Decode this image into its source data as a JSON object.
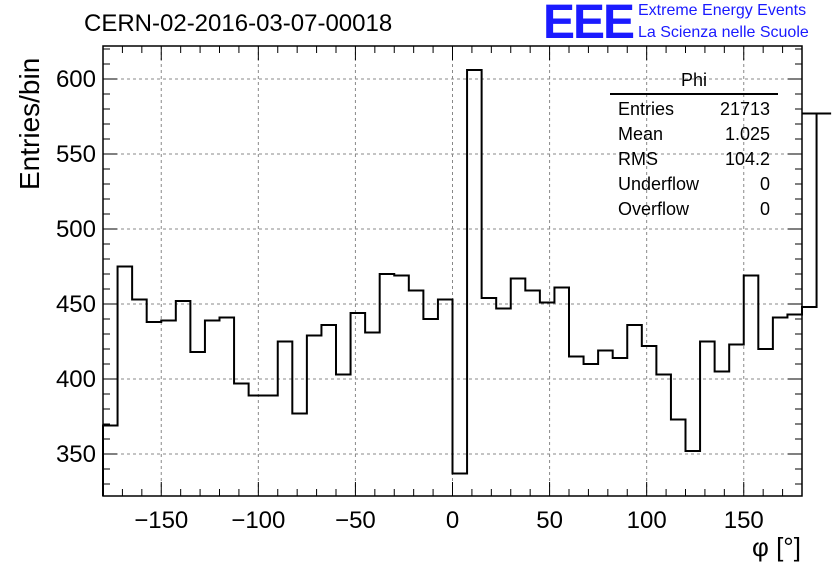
{
  "chart_data": {
    "type": "bar",
    "title": "CERN-02-2016-03-07-00018",
    "xlabel": "φ [°]",
    "ylabel": "Entries/bin",
    "xlim": [
      -180,
      180
    ],
    "ylim": [
      322,
      622
    ],
    "xticks": [
      -150,
      -100,
      -50,
      0,
      50,
      100,
      150
    ],
    "xtick_labels": [
      "−150",
      "−100",
      "−50",
      "0",
      "50",
      "100",
      "150"
    ],
    "yticks": [
      350,
      400,
      450,
      500,
      550,
      600
    ],
    "yticks_labels": [
      "350",
      "400",
      "450",
      "500",
      "550",
      "600"
    ],
    "grid": true,
    "bin_edges_start": -180,
    "bin_width": 7.5,
    "values": [
      369,
      475,
      453,
      438,
      439,
      452,
      418,
      439,
      441,
      397,
      389,
      389,
      425,
      377,
      429,
      436,
      403,
      444,
      431,
      470,
      469,
      459,
      440,
      453,
      337,
      606,
      454,
      447,
      467,
      459,
      451,
      461,
      415,
      410,
      419,
      414,
      436,
      422,
      403,
      373,
      352,
      425,
      405,
      423,
      469,
      420,
      441,
      443,
      448
    ],
    "stats": {
      "title": "Phi",
      "rows": [
        {
          "label": "Entries",
          "value": "21713"
        },
        {
          "label": "Mean",
          "value": "1.025"
        },
        {
          "label": "RMS",
          "value": "104.2"
        },
        {
          "label": "Underflow",
          "value": "0"
        },
        {
          "label": "Overflow",
          "value": "0"
        }
      ]
    },
    "logo": {
      "mark": "EEE",
      "line1": "Extreme Energy Events",
      "line2": "La Scienza nelle Scuole",
      "color": "#1a1aff"
    },
    "last_bin_value": 577
  }
}
